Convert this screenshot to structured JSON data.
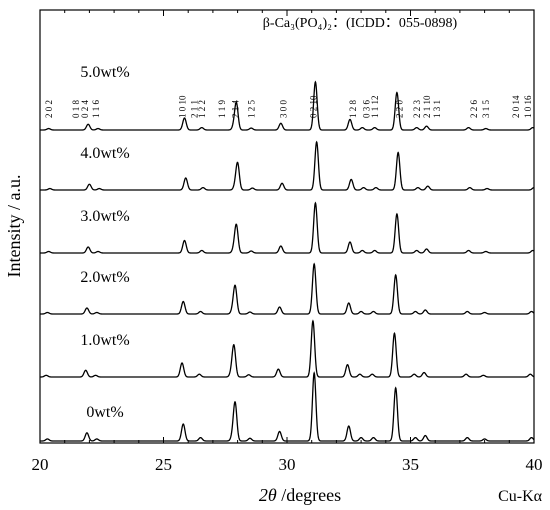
{
  "chart_data": {
    "type": "line",
    "title": "β-Ca₃(PO₄)₂：(ICDD：055-0898)",
    "xlabel_prefix": "2θ",
    "xlabel_suffix": " /degrees",
    "ylabel": "Intensity / a.u.",
    "radiation": "Cu-Kα",
    "xlim": [
      20,
      40
    ],
    "x_ticks": [
      "20",
      "25",
      "30",
      "35",
      "40"
    ],
    "line_color": "#000000",
    "peaks": [
      {
        "pos": 20.3,
        "rel": 0.03
      },
      {
        "pos": 21.9,
        "rel": 0.12
      },
      {
        "pos": 22.3,
        "rel": 0.03
      },
      {
        "pos": 25.8,
        "rel": 0.25
      },
      {
        "pos": 26.5,
        "rel": 0.05
      },
      {
        "pos": 27.8,
        "rel": 0.07
      },
      {
        "pos": 27.9,
        "rel": 0.55
      },
      {
        "pos": 28.5,
        "rel": 0.04
      },
      {
        "pos": 29.7,
        "rel": 0.14
      },
      {
        "pos": 31.1,
        "rel": 1.0
      },
      {
        "pos": 32.5,
        "rel": 0.22
      },
      {
        "pos": 33.0,
        "rel": 0.05
      },
      {
        "pos": 33.5,
        "rel": 0.05
      },
      {
        "pos": 34.4,
        "rel": 0.78
      },
      {
        "pos": 35.2,
        "rel": 0.05
      },
      {
        "pos": 35.6,
        "rel": 0.08
      },
      {
        "pos": 37.3,
        "rel": 0.05
      },
      {
        "pos": 38.0,
        "rel": 0.03
      },
      {
        "pos": 39.9,
        "rel": 0.05
      }
    ],
    "series": [
      {
        "name": "5.0wt%",
        "label": "5.0wt%",
        "shift": 0.05,
        "height": 48
      },
      {
        "name": "4.0wt%",
        "label": "4.0wt%",
        "shift": 0.1,
        "height": 48
      },
      {
        "name": "3.0wt%",
        "label": "3.0wt%",
        "shift": 0.05,
        "height": 50
      },
      {
        "name": "2.0wt%",
        "label": "2.0wt%",
        "shift": 0.0,
        "height": 50
      },
      {
        "name": "1.0wt%",
        "label": "1.0wt%",
        "shift": -0.05,
        "height": 56
      },
      {
        "name": "0wt%",
        "label": "0wt%",
        "shift": 0.0,
        "height": 68
      }
    ],
    "hkl_labels": [
      {
        "text": "2 0 2",
        "x": 20.4
      },
      {
        "text": "0 1 8",
        "x": 21.5
      },
      {
        "text": "0 2 4",
        "x": 21.85
      },
      {
        "text": "1 1 6",
        "x": 22.3
      },
      {
        "text": "1 0 10",
        "x": 25.8
      },
      {
        "text": "2 1 1",
        "x": 26.3
      },
      {
        "text": "1 2 2",
        "x": 26.6
      },
      {
        "text": "1 1 9",
        "x": 27.4
      },
      {
        "text": "2 1 4",
        "x": 27.95
      },
      {
        "text": "1 2 5",
        "x": 28.6
      },
      {
        "text": "3 0 0",
        "x": 29.9
      },
      {
        "text": "0 2 10",
        "x": 31.1
      },
      {
        "text": "1 2 8",
        "x": 32.7
      },
      {
        "text": "0 3 6",
        "x": 33.25
      },
      {
        "text": "1 1 12",
        "x": 33.6
      },
      {
        "text": "2 2 0",
        "x": 34.6
      },
      {
        "text": "2 2 3",
        "x": 35.3
      },
      {
        "text": "2 1 10",
        "x": 35.7
      },
      {
        "text": "1 3 1",
        "x": 36.1
      },
      {
        "text": "2 2 6",
        "x": 37.6
      },
      {
        "text": "3 1 5",
        "x": 38.1
      },
      {
        "text": "2 0 14",
        "x": 39.3
      },
      {
        "text": "1 0 16",
        "x": 39.8
      }
    ]
  }
}
